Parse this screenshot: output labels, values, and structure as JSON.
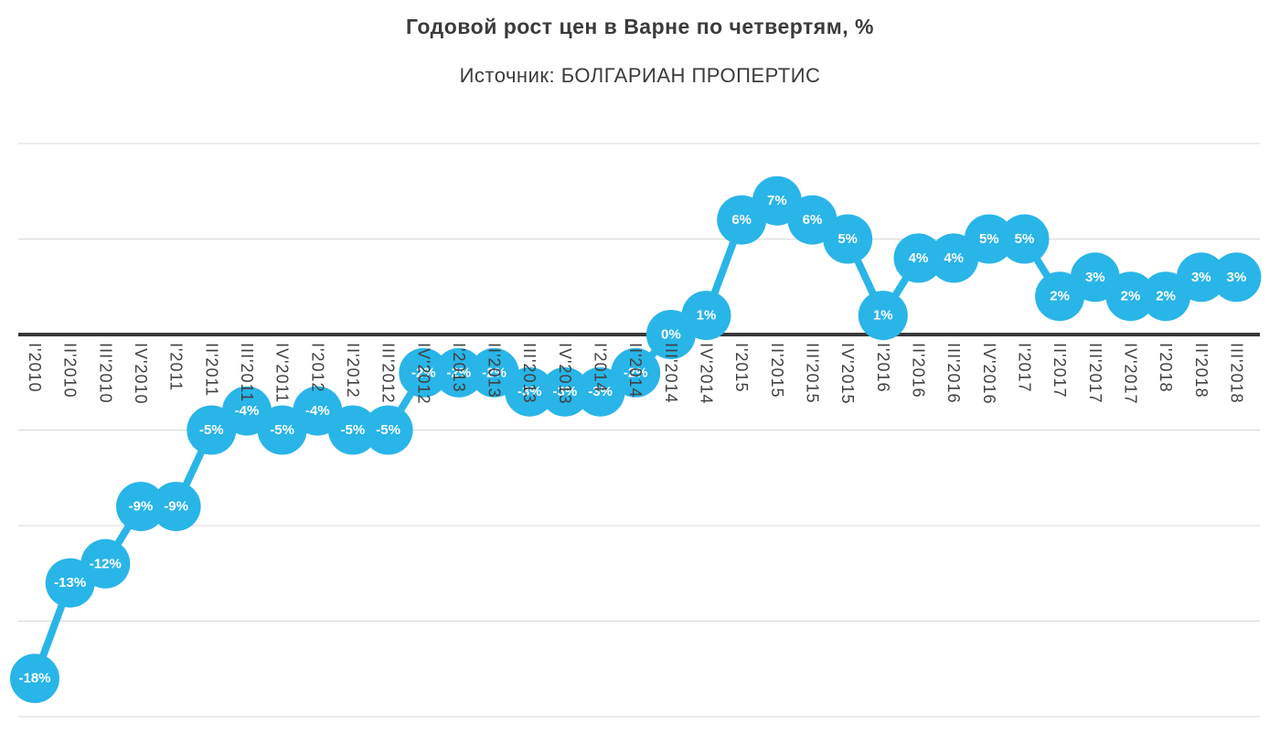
{
  "header": {
    "title": "Годовой рост цен в Варне по четвертям, %",
    "subtitle": "Источник: БОЛГАРИАН ПРОПЕРТИС"
  },
  "chart_data": {
    "type": "line",
    "title": "Годовой рост цен в Варне по четвертям, %",
    "subtitle": "Источник: БОЛГАРИАН ПРОПЕРТИС",
    "xlabel": "",
    "ylabel": "",
    "categories": [
      "I'2010",
      "II'2010",
      "III'2010",
      "IV'2010",
      "I'2011",
      "II'2011",
      "III'2011",
      "IV'2011",
      "I'2012",
      "II'2012",
      "III'2012",
      "IV'2012",
      "I'2013",
      "II'2013",
      "III'2013",
      "IV'2013",
      "I'2014",
      "II'2014",
      "III'2014",
      "IV'2014",
      "I'2015",
      "II'2015",
      "III'2015",
      "IV'2015",
      "I'2016",
      "II'2016",
      "III'2016",
      "IV'2016",
      "I'2017",
      "II'2017",
      "III'2017",
      "IV'2017",
      "I'2018",
      "II'2018",
      "III'2018"
    ],
    "values": [
      -18,
      -13,
      -12,
      -9,
      -9,
      -5,
      -4,
      -5,
      -4,
      -5,
      -5,
      -2,
      -2,
      -2,
      -3,
      -3,
      -3,
      -2,
      0,
      1,
      6,
      7,
      6,
      5,
      1,
      4,
      4,
      5,
      5,
      2,
      3,
      2,
      2,
      3,
      3
    ],
    "labels": [
      "-18%",
      "-13%",
      "-12%",
      "-9%",
      "-9%",
      "-5%",
      "-4%",
      "-5%",
      "-4%",
      "-5%",
      "-5%",
      "-2%",
      "-2%",
      "-2%",
      "-3%",
      "-3%",
      "-3%",
      "-2%",
      "0%",
      "1%",
      "6%",
      "7%",
      "6%",
      "5%",
      "1%",
      "4%",
      "4%",
      "5%",
      "5%",
      "2%",
      "3%",
      "2%",
      "2%",
      "3%",
      "3%"
    ],
    "ylim": [
      -20,
      10
    ],
    "gridline_values": [
      10,
      5,
      0,
      -5,
      -10,
      -15,
      -20
    ],
    "zero_line_value": 0,
    "grid": true,
    "legend": false,
    "xlabel_rotation_deg": 90,
    "marker_color": "#29b5e8",
    "line_color": "#29b5e8",
    "data_label_color": "#ffffff",
    "axis_line_color": "#383838",
    "gridline_color": "#d8d8d8",
    "xlabel_color": "#404040",
    "title_color": "#3b3b3b"
  }
}
